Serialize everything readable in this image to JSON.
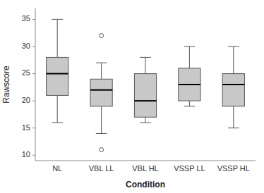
{
  "chart_data": {
    "type": "box",
    "categories": [
      "NL",
      "VBL LL",
      "VBL HL",
      "VSSP LL",
      "VSSP HL"
    ],
    "boxes": [
      {
        "q1": 21,
        "median": 25,
        "q3": 28,
        "whislo": 16,
        "whishi": 35,
        "fliers": []
      },
      {
        "q1": 19,
        "median": 22,
        "q3": 24,
        "whislo": 14,
        "whishi": 27,
        "fliers": [
          11,
          32
        ]
      },
      {
        "q1": 17,
        "median": 20,
        "q3": 25,
        "whislo": 16,
        "whishi": 28,
        "fliers": []
      },
      {
        "q1": 20,
        "median": 23,
        "q3": 26,
        "whislo": 19,
        "whishi": 30,
        "fliers": []
      },
      {
        "q1": 19,
        "median": 23,
        "q3": 25,
        "whislo": 15,
        "whishi": 30,
        "fliers": []
      }
    ],
    "ylabel": "Rawscore",
    "xlabel": "Condition",
    "ylim": [
      9,
      37
    ],
    "yticks": [
      10,
      15,
      20,
      25,
      30,
      35
    ],
    "color": "#c8c8c8",
    "grid": false
  }
}
